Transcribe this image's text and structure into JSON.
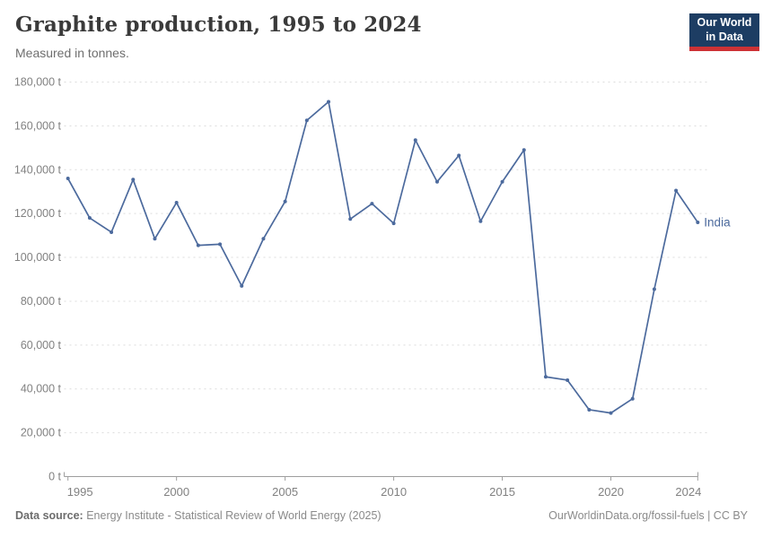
{
  "header": {
    "title": "Graphite production, 1995 to 2024",
    "subtitle": "Measured in tonnes.",
    "logo_line1": "Our World",
    "logo_line2": "in Data"
  },
  "footer": {
    "source_label": "Data source:",
    "source_text": " Energy Institute - Statistical Review of World Energy (2025)",
    "right_text": "OurWorldinData.org/fossil-fuels | CC BY"
  },
  "colors": {
    "line": "#4c6a9d",
    "grid": "#dcdcdc",
    "axis": "#9e9e9e",
    "tick_label": "#818181",
    "logo_bg": "#1d3d63",
    "logo_accent": "#cd3235"
  },
  "chart_data": {
    "type": "line",
    "title": "Graphite production, 1995 to 2024",
    "subtitle": "Measured in tonnes.",
    "unit": "t",
    "legend_position": "end-of-line-label",
    "grid": "dashed-horizontal",
    "x": [
      1995,
      1996,
      1997,
      1998,
      1999,
      2000,
      2001,
      2002,
      2003,
      2004,
      2005,
      2006,
      2007,
      2008,
      2009,
      2010,
      2011,
      2012,
      2013,
      2014,
      2015,
      2016,
      2017,
      2018,
      2019,
      2020,
      2021,
      2022,
      2023,
      2024
    ],
    "series": [
      {
        "name": "India",
        "values": [
          136000,
          118000,
          111500,
          135500,
          108500,
          125000,
          105500,
          106000,
          87000,
          108500,
          125500,
          162500,
          171000,
          117500,
          124500,
          115500,
          153500,
          134500,
          146500,
          116500,
          134500,
          149000,
          45500,
          44000,
          30500,
          29000,
          35500,
          85500,
          130500,
          116000
        ]
      }
    ],
    "xlim": [
      1995,
      2024
    ],
    "ylim": [
      0,
      180000
    ],
    "x_ticks": [
      1995,
      2000,
      2005,
      2010,
      2015,
      2020,
      2024
    ],
    "y_ticks": [
      0,
      20000,
      40000,
      60000,
      80000,
      100000,
      120000,
      140000,
      160000,
      180000
    ],
    "y_tick_labels": [
      "0 t",
      "20,000 t",
      "40,000 t",
      "60,000 t",
      "80,000 t",
      "100,000 t",
      "120,000 t",
      "140,000 t",
      "160,000 t",
      "180,000 t"
    ]
  }
}
